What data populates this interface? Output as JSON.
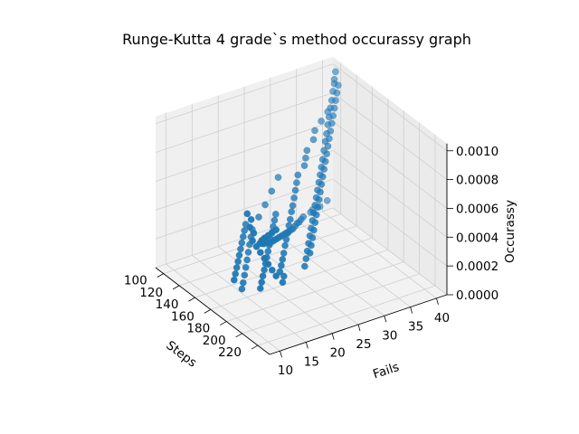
{
  "chart_data": {
    "type": "scatter",
    "projection": "3d",
    "title": "Runge-Kutta 4 grade`s method occurassy graph",
    "xlabel": "Steps",
    "ylabel": "Fails",
    "zlabel": "Occurassy",
    "xlim": [
      90,
      235
    ],
    "ylim": [
      8,
      42
    ],
    "zlim": [
      0,
      0.00105
    ],
    "xticks": [
      "100",
      "120",
      "140",
      "160",
      "180",
      "200",
      "220"
    ],
    "yticks": [
      "10",
      "15",
      "20",
      "25",
      "30",
      "35",
      "40"
    ],
    "zticks": [
      "0.0000",
      "0.0002",
      "0.0004",
      "0.0006",
      "0.0008",
      "0.0010"
    ],
    "grid": true,
    "marker_color": "#1f77b4",
    "series": [
      {
        "points": [
          [
            96,
            40,
            0.0001
          ],
          [
            100,
            38,
            0.0001
          ],
          [
            104,
            36,
            0.00012
          ],
          [
            108,
            35,
            0.00013
          ],
          [
            112,
            33,
            0.00014
          ],
          [
            116,
            32,
            0.00015
          ],
          [
            120,
            31,
            0.00016
          ],
          [
            124,
            30,
            0.00018
          ],
          [
            128,
            29,
            0.00019
          ],
          [
            132,
            28,
            0.0002
          ],
          [
            136,
            27,
            0.00022
          ],
          [
            140,
            26,
            0.00024
          ],
          [
            144,
            25,
            0.00026
          ],
          [
            148,
            24,
            0.00028
          ],
          [
            152,
            23,
            0.0003
          ],
          [
            156,
            22,
            0.00032
          ],
          [
            160,
            21,
            0.00034
          ],
          [
            164,
            20,
            0.00036
          ],
          [
            168,
            19,
            0.00038
          ],
          [
            172,
            18,
            0.0004
          ],
          [
            176,
            17,
            0.00042
          ],
          [
            180,
            16,
            0.00045
          ],
          [
            184,
            15,
            0.00048
          ],
          [
            188,
            14,
            0.0005
          ],
          [
            192,
            13,
            0.00053
          ],
          [
            196,
            12,
            0.00056
          ],
          [
            200,
            12,
            0.0006
          ],
          [
            205,
            11,
            0.00063
          ],
          [
            210,
            11,
            0.00067
          ],
          [
            215,
            10,
            0.0007
          ],
          [
            220,
            10,
            0.00074
          ],
          [
            225,
            10,
            0.00078
          ],
          [
            230,
            10,
            0.00082
          ],
          [
            110,
            38,
            0.0008
          ],
          [
            115,
            36,
            0.00078
          ],
          [
            120,
            34,
            0.00076
          ],
          [
            125,
            33,
            0.00073
          ],
          [
            130,
            31,
            0.0007
          ],
          [
            135,
            30,
            0.00068
          ],
          [
            140,
            29,
            0.00066
          ],
          [
            145,
            27,
            0.00064
          ],
          [
            150,
            26,
            0.00062
          ],
          [
            155,
            25,
            0.0006
          ],
          [
            160,
            24,
            0.00058
          ],
          [
            165,
            23,
            0.00056
          ],
          [
            170,
            22,
            0.00055
          ],
          [
            175,
            21,
            0.00053
          ],
          [
            180,
            20,
            0.00052
          ],
          [
            185,
            19,
            0.0005
          ],
          [
            190,
            18,
            0.00049
          ],
          [
            195,
            17,
            0.00048
          ],
          [
            200,
            16,
            0.00046
          ],
          [
            205,
            15,
            0.00045
          ],
          [
            210,
            14,
            0.00044
          ],
          [
            215,
            13,
            0.00043
          ],
          [
            220,
            13,
            0.00042
          ],
          [
            225,
            12,
            0.00041
          ],
          [
            105,
            40,
            0.00095
          ],
          [
            110,
            39,
            0.00093
          ],
          [
            115,
            38,
            0.0009
          ],
          [
            120,
            37,
            0.00088
          ],
          [
            125,
            36,
            0.00085
          ],
          [
            130,
            35,
            0.00083
          ],
          [
            135,
            34,
            0.0008
          ],
          [
            140,
            33,
            0.00078
          ],
          [
            145,
            32,
            0.00075
          ],
          [
            150,
            31,
            0.00072
          ],
          [
            155,
            30,
            0.0007
          ],
          [
            160,
            29,
            0.00068
          ],
          [
            165,
            28,
            0.00066
          ],
          [
            170,
            27,
            0.00064
          ],
          [
            175,
            26,
            0.00062
          ],
          [
            180,
            25,
            0.0006
          ],
          [
            185,
            24,
            0.00058
          ],
          [
            190,
            23,
            0.00056
          ],
          [
            195,
            22,
            0.00054
          ],
          [
            200,
            21,
            0.00052
          ],
          [
            205,
            20,
            0.0005
          ],
          [
            210,
            19,
            0.00048
          ],
          [
            215,
            18,
            0.00046
          ],
          [
            220,
            17,
            0.00044
          ],
          [
            100,
            41,
            0.001
          ],
          [
            105,
            40,
            0.00098
          ],
          [
            110,
            40,
            0.00096
          ],
          [
            115,
            39,
            0.00094
          ],
          [
            120,
            38,
            0.00092
          ],
          [
            125,
            37,
            0.0009
          ],
          [
            130,
            36,
            0.00088
          ],
          [
            135,
            35,
            0.00086
          ],
          [
            140,
            34,
            0.00084
          ],
          [
            145,
            33,
            0.00082
          ],
          [
            150,
            32,
            0.0008
          ],
          [
            155,
            31,
            0.00078
          ],
          [
            160,
            30,
            0.00076
          ],
          [
            165,
            29,
            0.00074
          ],
          [
            170,
            28,
            0.00072
          ],
          [
            175,
            27,
            0.0007
          ],
          [
            180,
            26,
            0.00068
          ],
          [
            185,
            25,
            0.00066
          ],
          [
            190,
            24,
            0.00064
          ],
          [
            195,
            23,
            0.00062
          ],
          [
            200,
            22,
            0.0006
          ],
          [
            205,
            21,
            0.00058
          ],
          [
            210,
            20,
            0.00056
          ],
          [
            215,
            19,
            0.00054
          ],
          [
            220,
            18,
            0.00052
          ],
          [
            125,
            20,
            0.0003
          ],
          [
            130,
            19,
            0.00029
          ],
          [
            135,
            18,
            0.00028
          ],
          [
            140,
            17,
            0.00027
          ],
          [
            145,
            16,
            0.00026
          ],
          [
            150,
            15,
            0.00025
          ],
          [
            155,
            14,
            0.00024
          ],
          [
            160,
            13,
            0.00023
          ],
          [
            165,
            12,
            0.00022
          ],
          [
            170,
            11,
            0.00021
          ],
          [
            150,
            22,
            0.00045
          ],
          [
            155,
            21,
            0.00044
          ],
          [
            160,
            20,
            0.00043
          ],
          [
            165,
            19,
            0.00042
          ],
          [
            170,
            18,
            0.00041
          ],
          [
            175,
            17,
            0.0004
          ],
          [
            180,
            16,
            0.00039
          ],
          [
            185,
            15,
            0.00038
          ],
          [
            190,
            14,
            0.00037
          ],
          [
            195,
            13,
            0.00036
          ],
          [
            200,
            12,
            0.00035
          ],
          [
            205,
            11,
            0.00034
          ],
          [
            210,
            10,
            0.00033
          ],
          [
            100,
            30,
            0.0004
          ],
          [
            105,
            28,
            0.00035
          ],
          [
            110,
            26,
            0.0003
          ],
          [
            115,
            24,
            0.00026
          ],
          [
            120,
            22,
            0.00022
          ],
          [
            125,
            21,
            0.0002
          ],
          [
            130,
            20,
            0.00018
          ],
          [
            135,
            19,
            0.00016
          ],
          [
            140,
            18,
            0.00014
          ],
          [
            145,
            17,
            0.00012
          ],
          [
            150,
            16,
            0.0001
          ],
          [
            155,
            15,
            8e-05
          ],
          [
            160,
            14,
            7e-05
          ],
          [
            180,
            12,
            0.0007
          ],
          [
            185,
            12,
            0.00068
          ],
          [
            190,
            11,
            0.00066
          ],
          [
            195,
            11,
            0.00064
          ],
          [
            200,
            10,
            0.00062
          ],
          [
            205,
            10,
            0.0006
          ],
          [
            210,
            10,
            0.00058
          ],
          [
            215,
            10,
            0.00056
          ],
          [
            220,
            10,
            0.00054
          ],
          [
            225,
            10,
            0.00052
          ],
          [
            230,
            10,
            0.0005
          ]
        ]
      }
    ]
  }
}
